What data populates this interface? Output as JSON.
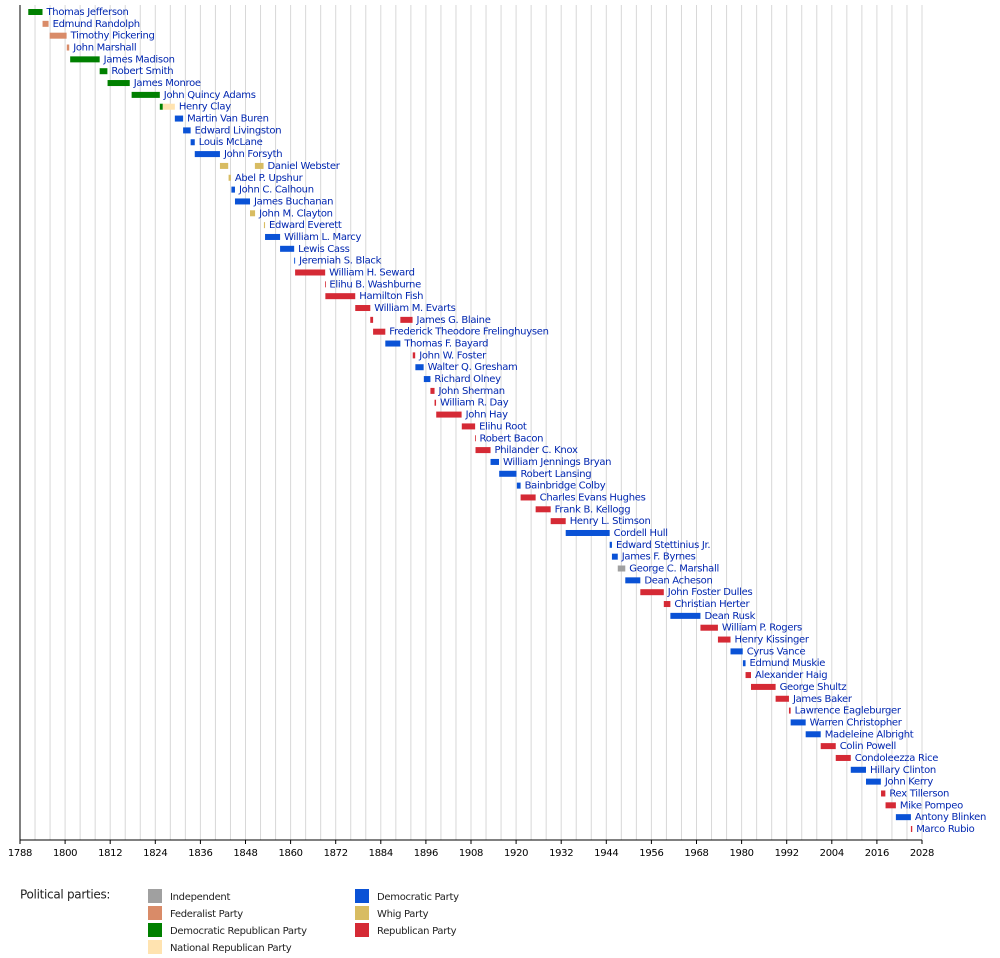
{
  "chart_data": {
    "type": "timeline",
    "xlim": [
      1788,
      2028
    ],
    "xticks": [
      1788,
      1800,
      1812,
      1824,
      1836,
      1848,
      1860,
      1872,
      1884,
      1896,
      1908,
      1920,
      1932,
      1944,
      1956,
      1968,
      1980,
      1992,
      2004,
      2016,
      2028
    ],
    "grid_xticks": [
      1788,
      1792,
      1796,
      1800,
      1804,
      1808,
      1812,
      1816,
      1820,
      1824,
      1828,
      1832,
      1836,
      1840,
      1844,
      1848,
      1852,
      1856,
      1860,
      1864,
      1868,
      1872,
      1876,
      1880,
      1884,
      1888,
      1892,
      1896,
      1900,
      1904,
      1908,
      1912,
      1916,
      1920,
      1924,
      1928,
      1932,
      1936,
      1940,
      1944,
      1948,
      1952,
      1956,
      1960,
      1964,
      1968,
      1972,
      1976,
      1980,
      1984,
      1988,
      1992,
      1996,
      2000,
      2004,
      2008,
      2012,
      2016,
      2020,
      2024,
      2028
    ],
    "legend_title": "Political parties:",
    "parties": [
      {
        "name": "Independent",
        "color": "#a0a0a0"
      },
      {
        "name": "Federalist Party",
        "color": "#d98b68"
      },
      {
        "name": "Democratic Republican Party",
        "color": "#008000"
      },
      {
        "name": "National Republican Party",
        "color": "#ffe3b0"
      },
      {
        "name": "Democratic Party",
        "color": "#0a52d6"
      },
      {
        "name": "Whig Party",
        "color": "#d8bc62"
      },
      {
        "name": "Republican Party",
        "color": "#d52a35"
      }
    ],
    "rows": [
      {
        "name": "Thomas Jefferson",
        "terms": [
          {
            "start": 1790.2,
            "end": 1793.99,
            "party": "Democratic Republican Party"
          }
        ]
      },
      {
        "name": "Edmund Randolph",
        "terms": [
          {
            "start": 1794.0,
            "end": 1795.6,
            "party": "Federalist Party"
          }
        ]
      },
      {
        "name": "Timothy Pickering",
        "terms": [
          {
            "start": 1795.9,
            "end": 1800.4,
            "party": "Federalist Party"
          }
        ]
      },
      {
        "name": "John Marshall",
        "terms": [
          {
            "start": 1800.45,
            "end": 1801.1,
            "party": "Federalist Party"
          }
        ]
      },
      {
        "name": "James Madison",
        "terms": [
          {
            "start": 1801.35,
            "end": 1809.2,
            "party": "Democratic Republican Party"
          }
        ]
      },
      {
        "name": "Robert Smith",
        "terms": [
          {
            "start": 1809.2,
            "end": 1811.25,
            "party": "Democratic Republican Party"
          }
        ]
      },
      {
        "name": "James Monroe",
        "terms": [
          {
            "start": 1811.3,
            "end": 1817.2,
            "party": "Democratic Republican Party"
          }
        ]
      },
      {
        "name": "John Quincy Adams",
        "terms": [
          {
            "start": 1817.7,
            "end": 1825.2,
            "party": "Democratic Republican Party"
          }
        ]
      },
      {
        "name": "Henry Clay",
        "terms": [
          {
            "start": 1825.2,
            "end": 1826.0,
            "party": "Democratic Republican Party"
          },
          {
            "start": 1826.0,
            "end": 1829.2,
            "party": "National Republican Party"
          }
        ]
      },
      {
        "name": "Martin Van Buren",
        "terms": [
          {
            "start": 1829.2,
            "end": 1831.4,
            "party": "Democratic Party"
          }
        ]
      },
      {
        "name": "Edward Livingston",
        "terms": [
          {
            "start": 1831.4,
            "end": 1833.4,
            "party": "Democratic Party"
          }
        ]
      },
      {
        "name": "Louis McLane",
        "terms": [
          {
            "start": 1833.4,
            "end": 1834.5,
            "party": "Democratic Party"
          }
        ]
      },
      {
        "name": "John Forsyth",
        "terms": [
          {
            "start": 1834.5,
            "end": 1841.2,
            "party": "Democratic Party"
          }
        ]
      },
      {
        "name": "Daniel Webster",
        "terms": [
          {
            "start": 1841.2,
            "end": 1843.4,
            "party": "Whig Party"
          },
          {
            "start": 1850.5,
            "end": 1852.8,
            "party": "Whig Party"
          }
        ]
      },
      {
        "name": "Abel P. Upshur",
        "terms": [
          {
            "start": 1843.5,
            "end": 1844.1,
            "party": "Whig Party"
          }
        ]
      },
      {
        "name": "John C. Calhoun",
        "terms": [
          {
            "start": 1844.25,
            "end": 1845.2,
            "party": "Democratic Party"
          }
        ]
      },
      {
        "name": "James Buchanan",
        "terms": [
          {
            "start": 1845.2,
            "end": 1849.2,
            "party": "Democratic Party"
          }
        ]
      },
      {
        "name": "John M. Clayton",
        "terms": [
          {
            "start": 1849.2,
            "end": 1850.55,
            "party": "Whig Party"
          }
        ]
      },
      {
        "name": "Edward Everett",
        "terms": [
          {
            "start": 1852.9,
            "end": 1853.2,
            "party": "Whig Party"
          }
        ]
      },
      {
        "name": "William L. Marcy",
        "terms": [
          {
            "start": 1853.2,
            "end": 1857.2,
            "party": "Democratic Party"
          }
        ]
      },
      {
        "name": "Lewis Cass",
        "terms": [
          {
            "start": 1857.2,
            "end": 1860.95,
            "party": "Democratic Party"
          }
        ]
      },
      {
        "name": "Jeremiah S. Black",
        "terms": [
          {
            "start": 1860.95,
            "end": 1861.2,
            "party": "Democratic Party"
          }
        ]
      },
      {
        "name": "William H. Seward",
        "terms": [
          {
            "start": 1861.2,
            "end": 1869.2,
            "party": "Republican Party"
          }
        ]
      },
      {
        "name": "Elihu B. Washburne",
        "terms": [
          {
            "start": 1869.2,
            "end": 1869.25,
            "party": "Republican Party"
          }
        ]
      },
      {
        "name": "Hamilton Fish",
        "terms": [
          {
            "start": 1869.25,
            "end": 1877.2,
            "party": "Republican Party"
          }
        ]
      },
      {
        "name": "William M. Evarts",
        "terms": [
          {
            "start": 1877.2,
            "end": 1881.2,
            "party": "Republican Party"
          }
        ]
      },
      {
        "name": "James G. Blaine",
        "terms": [
          {
            "start": 1881.2,
            "end": 1881.95,
            "party": "Republican Party"
          },
          {
            "start": 1889.2,
            "end": 1892.45,
            "party": "Republican Party"
          }
        ]
      },
      {
        "name": "Frederick Theodore Frelinghuysen",
        "terms": [
          {
            "start": 1881.95,
            "end": 1885.2,
            "party": "Republican Party"
          }
        ]
      },
      {
        "name": "Thomas F. Bayard",
        "terms": [
          {
            "start": 1885.2,
            "end": 1889.2,
            "party": "Democratic Party"
          }
        ]
      },
      {
        "name": "John W. Foster",
        "terms": [
          {
            "start": 1892.5,
            "end": 1893.15,
            "party": "Republican Party"
          }
        ]
      },
      {
        "name": "Walter Q. Gresham",
        "terms": [
          {
            "start": 1893.2,
            "end": 1895.4,
            "party": "Democratic Party"
          }
        ]
      },
      {
        "name": "Richard Olney",
        "terms": [
          {
            "start": 1895.45,
            "end": 1897.2,
            "party": "Democratic Party"
          }
        ]
      },
      {
        "name": "John Sherman",
        "terms": [
          {
            "start": 1897.2,
            "end": 1898.3,
            "party": "Republican Party"
          }
        ]
      },
      {
        "name": "William R. Day",
        "terms": [
          {
            "start": 1898.3,
            "end": 1898.7,
            "party": "Republican Party"
          }
        ]
      },
      {
        "name": "John Hay",
        "terms": [
          {
            "start": 1898.75,
            "end": 1905.5,
            "party": "Republican Party"
          }
        ]
      },
      {
        "name": "Elihu Root",
        "terms": [
          {
            "start": 1905.55,
            "end": 1909.1,
            "party": "Republican Party"
          }
        ]
      },
      {
        "name": "Robert Bacon",
        "terms": [
          {
            "start": 1909.1,
            "end": 1909.2,
            "party": "Republican Party"
          }
        ]
      },
      {
        "name": "Philander C. Knox",
        "terms": [
          {
            "start": 1909.2,
            "end": 1913.2,
            "party": "Republican Party"
          }
        ]
      },
      {
        "name": "William Jennings Bryan",
        "terms": [
          {
            "start": 1913.2,
            "end": 1915.45,
            "party": "Democratic Party"
          }
        ]
      },
      {
        "name": "Robert Lansing",
        "terms": [
          {
            "start": 1915.5,
            "end": 1920.1,
            "party": "Democratic Party"
          }
        ]
      },
      {
        "name": "Bainbridge Colby",
        "terms": [
          {
            "start": 1920.2,
            "end": 1921.2,
            "party": "Democratic Party"
          }
        ]
      },
      {
        "name": "Charles Evans Hughes",
        "terms": [
          {
            "start": 1921.2,
            "end": 1925.2,
            "party": "Republican Party"
          }
        ]
      },
      {
        "name": "Frank B. Kellogg",
        "terms": [
          {
            "start": 1925.2,
            "end": 1929.2,
            "party": "Republican Party"
          }
        ]
      },
      {
        "name": "Henry L. Stimson",
        "terms": [
          {
            "start": 1929.2,
            "end": 1933.2,
            "party": "Republican Party"
          }
        ]
      },
      {
        "name": "Cordell Hull",
        "terms": [
          {
            "start": 1933.2,
            "end": 1944.9,
            "party": "Democratic Party"
          }
        ]
      },
      {
        "name": "Edward Stettinius Jr.",
        "terms": [
          {
            "start": 1944.9,
            "end": 1945.5,
            "party": "Democratic Party"
          }
        ]
      },
      {
        "name": "James F. Byrnes",
        "terms": [
          {
            "start": 1945.5,
            "end": 1947.05,
            "party": "Democratic Party"
          }
        ]
      },
      {
        "name": "George C. Marshall",
        "terms": [
          {
            "start": 1947.05,
            "end": 1949.05,
            "party": "Independent"
          }
        ]
      },
      {
        "name": "Dean Acheson",
        "terms": [
          {
            "start": 1949.05,
            "end": 1953.05,
            "party": "Democratic Party"
          }
        ]
      },
      {
        "name": "John Foster Dulles",
        "terms": [
          {
            "start": 1953.05,
            "end": 1959.3,
            "party": "Republican Party"
          }
        ]
      },
      {
        "name": "Christian Herter",
        "terms": [
          {
            "start": 1959.3,
            "end": 1961.05,
            "party": "Republican Party"
          }
        ]
      },
      {
        "name": "Dean Rusk",
        "terms": [
          {
            "start": 1961.05,
            "end": 1969.05,
            "party": "Democratic Party"
          }
        ]
      },
      {
        "name": "William P. Rogers",
        "terms": [
          {
            "start": 1969.05,
            "end": 1973.7,
            "party": "Republican Party"
          }
        ]
      },
      {
        "name": "Henry Kissinger",
        "terms": [
          {
            "start": 1973.7,
            "end": 1977.05,
            "party": "Republican Party"
          }
        ]
      },
      {
        "name": "Cyrus Vance",
        "terms": [
          {
            "start": 1977.05,
            "end": 1980.3,
            "party": "Democratic Party"
          }
        ]
      },
      {
        "name": "Edmund Muskie",
        "terms": [
          {
            "start": 1980.35,
            "end": 1981.05,
            "party": "Democratic Party"
          }
        ]
      },
      {
        "name": "Alexander Haig",
        "terms": [
          {
            "start": 1981.05,
            "end": 1982.5,
            "party": "Republican Party"
          }
        ]
      },
      {
        "name": "George Shultz",
        "terms": [
          {
            "start": 1982.5,
            "end": 1989.05,
            "party": "Republican Party"
          }
        ]
      },
      {
        "name": "James Baker",
        "terms": [
          {
            "start": 1989.05,
            "end": 1992.6,
            "party": "Republican Party"
          }
        ]
      },
      {
        "name": "Lawrence Eagleburger",
        "terms": [
          {
            "start": 1992.6,
            "end": 1993.05,
            "party": "Republican Party"
          }
        ]
      },
      {
        "name": "Warren Christopher",
        "terms": [
          {
            "start": 1993.05,
            "end": 1997.05,
            "party": "Democratic Party"
          }
        ]
      },
      {
        "name": "Madeleine Albright",
        "terms": [
          {
            "start": 1997.05,
            "end": 2001.05,
            "party": "Democratic Party"
          }
        ]
      },
      {
        "name": "Colin Powell",
        "terms": [
          {
            "start": 2001.05,
            "end": 2005.05,
            "party": "Republican Party"
          }
        ]
      },
      {
        "name": "Condoleezza Rice",
        "terms": [
          {
            "start": 2005.05,
            "end": 2009.05,
            "party": "Republican Party"
          }
        ]
      },
      {
        "name": "Hillary Clinton",
        "terms": [
          {
            "start": 2009.05,
            "end": 2013.1,
            "party": "Democratic Party"
          }
        ]
      },
      {
        "name": "John Kerry",
        "terms": [
          {
            "start": 2013.1,
            "end": 2017.05,
            "party": "Democratic Party"
          }
        ]
      },
      {
        "name": "Rex Tillerson",
        "terms": [
          {
            "start": 2017.1,
            "end": 2018.25,
            "party": "Republican Party"
          }
        ]
      },
      {
        "name": "Mike Pompeo",
        "terms": [
          {
            "start": 2018.3,
            "end": 2021.05,
            "party": "Republican Party"
          }
        ]
      },
      {
        "name": "Antony Blinken",
        "terms": [
          {
            "start": 2021.05,
            "end": 2025.05,
            "party": "Democratic Party"
          }
        ]
      },
      {
        "name": "Marco Rubio",
        "terms": [
          {
            "start": 2025.05,
            "end": 2025.4,
            "party": "Republican Party"
          }
        ]
      }
    ]
  }
}
